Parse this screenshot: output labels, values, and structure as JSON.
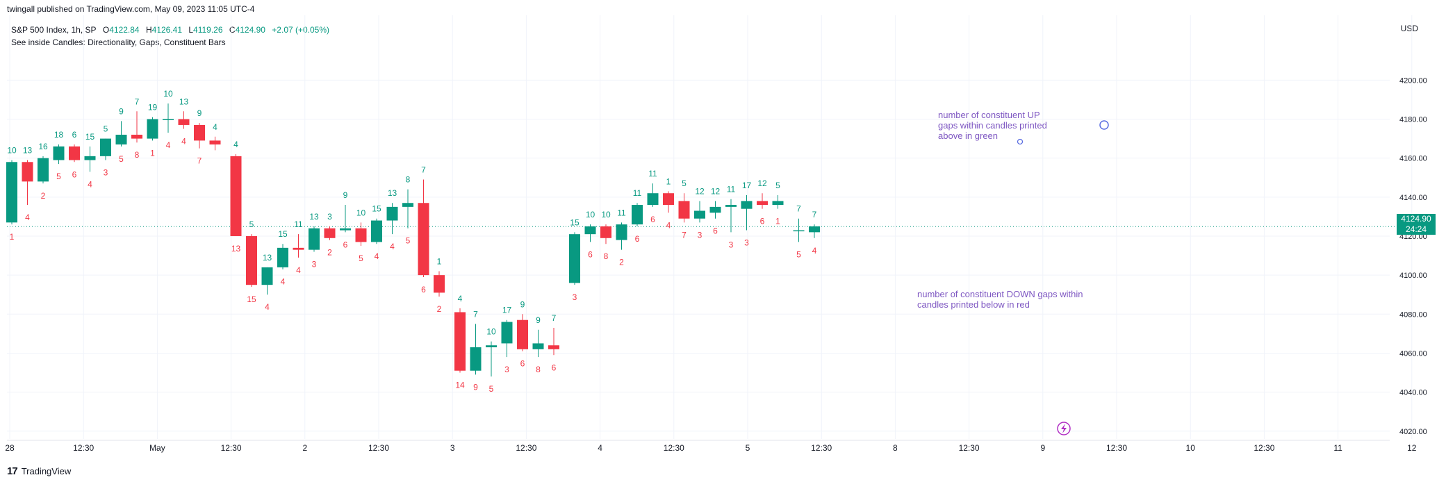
{
  "publish_line": "twingall published on TradingView.com, May 09, 2023 11:05 UTC-4",
  "header": {
    "symbol": "S&P 500 Index, 1h, SP",
    "open_label": "O",
    "open": "4122.84",
    "high_label": "H",
    "high": "4126.41",
    "low_label": "L",
    "low": "4119.26",
    "close_label": "C",
    "close": "4124.90",
    "change": "+2.07 (+0.05%)",
    "indicator": "See inside Candles: Directionality, Gaps, Constituent Bars"
  },
  "currency": "USD",
  "price_badge": {
    "price": "4124.90",
    "countdown": "24:24"
  },
  "annotations": {
    "up_note": "number of constituent UP gaps within candles printed above in green",
    "down_note": "number of constituent DOWN gaps within candles printed below in red"
  },
  "footer": {
    "brand": "TradingView",
    "logo": "17"
  },
  "colors": {
    "up": "#089981",
    "down": "#f23645",
    "note": "#7e57c2",
    "grid": "#f0f3fa",
    "axis_text": "#131722"
  },
  "chart_data": {
    "type": "candlestick",
    "title": "S&P 500 Index, 1h, SP",
    "ylabel": "USD",
    "ylim": [
      4016,
      4219
    ],
    "y_ticks": [
      "4020.00",
      "4040.00",
      "4060.00",
      "4080.00",
      "4100.00",
      "4120.00",
      "4140.00",
      "4160.00",
      "4180.00",
      "4200.00"
    ],
    "x_ticks": [
      "28",
      "12:30",
      "May",
      "12:30",
      "2",
      "12:30",
      "3",
      "12:30",
      "4",
      "12:30",
      "5",
      "12:30",
      "8",
      "12:30",
      "9",
      "12:30",
      "10",
      "12:30",
      "11",
      "12"
    ],
    "last_price": 4124.9,
    "candles": [
      {
        "o": 4127,
        "h": 4159,
        "l": 4126,
        "c": 4158,
        "up": "10",
        "dn": "1"
      },
      {
        "o": 4158,
        "h": 4159,
        "l": 4136,
        "c": 4148,
        "up": "13",
        "dn": "4"
      },
      {
        "o": 4148,
        "h": 4161,
        "l": 4147,
        "c": 4160,
        "up": "16",
        "dn": "2"
      },
      {
        "o": 4159,
        "h": 4167,
        "l": 4157,
        "c": 4166,
        "up": "18",
        "dn": "5"
      },
      {
        "o": 4166,
        "h": 4167,
        "l": 4158,
        "c": 4159,
        "up": "6",
        "dn": "6"
      },
      {
        "o": 4159,
        "h": 4166,
        "l": 4153,
        "c": 4161,
        "up": "15",
        "dn": "4"
      },
      {
        "o": 4161,
        "h": 4170,
        "l": 4159,
        "c": 4170,
        "up": "5",
        "dn": "3"
      },
      {
        "o": 4167,
        "h": 4179,
        "l": 4166,
        "c": 4172,
        "up": "9",
        "dn": "5"
      },
      {
        "o": 4172,
        "h": 4184,
        "l": 4168,
        "c": 4170,
        "up": "7",
        "dn": "8"
      },
      {
        "o": 4170,
        "h": 4181,
        "l": 4169,
        "c": 4180,
        "up": "19",
        "dn": "1"
      },
      {
        "o": 4180,
        "h": 4188,
        "l": 4173,
        "c": 4180,
        "up": "10",
        "dn": "4"
      },
      {
        "o": 4180,
        "h": 4184,
        "l": 4175,
        "c": 4177,
        "up": "13",
        "dn": "4"
      },
      {
        "o": 4177,
        "h": 4178,
        "l": 4165,
        "c": 4169,
        "up": "9",
        "dn": "7"
      },
      {
        "o": 4169,
        "h": 4171,
        "l": 4164,
        "c": 4167,
        "up": "4",
        "dn": ""
      },
      {
        "o": 4161,
        "h": 4162,
        "l": 4120,
        "c": 4120,
        "up": "4",
        "dn": "13"
      },
      {
        "o": 4120,
        "h": 4121,
        "l": 4094,
        "c": 4095,
        "up": "5",
        "dn": "15"
      },
      {
        "o": 4095,
        "h": 4104,
        "l": 4090,
        "c": 4104,
        "up": "13",
        "dn": "4"
      },
      {
        "o": 4104,
        "h": 4116,
        "l": 4103,
        "c": 4114,
        "up": "15",
        "dn": "4"
      },
      {
        "o": 4114,
        "h": 4121,
        "l": 4109,
        "c": 4113,
        "up": "11",
        "dn": "4"
      },
      {
        "o": 4113,
        "h": 4125,
        "l": 4112,
        "c": 4124,
        "up": "13",
        "dn": "3"
      },
      {
        "o": 4124,
        "h": 4125,
        "l": 4118,
        "c": 4119,
        "up": "3",
        "dn": "2"
      },
      {
        "o": 4123,
        "h": 4136,
        "l": 4122,
        "c": 4124,
        "up": "9",
        "dn": "6"
      },
      {
        "o": 4124,
        "h": 4127,
        "l": 4115,
        "c": 4117,
        "up": "10",
        "dn": "5"
      },
      {
        "o": 4117,
        "h": 4129,
        "l": 4116,
        "c": 4128,
        "up": "15",
        "dn": "4"
      },
      {
        "o": 4128,
        "h": 4137,
        "l": 4121,
        "c": 4135,
        "up": "13",
        "dn": "4"
      },
      {
        "o": 4135,
        "h": 4144,
        "l": 4124,
        "c": 4137,
        "up": "8",
        "dn": "5"
      },
      {
        "o": 4137,
        "h": 4149,
        "l": 4099,
        "c": 4100,
        "up": "7",
        "dn": "6"
      },
      {
        "o": 4100,
        "h": 4102,
        "l": 4089,
        "c": 4091,
        "up": "1",
        "dn": "2"
      },
      {
        "o": 4081,
        "h": 4083,
        "l": 4050,
        "c": 4051,
        "up": "4",
        "dn": "14"
      },
      {
        "o": 4051,
        "h": 4075,
        "l": 4049,
        "c": 4063,
        "up": "7",
        "dn": "9"
      },
      {
        "o": 4063,
        "h": 4066,
        "l": 4048,
        "c": 4064,
        "up": "10",
        "dn": "5"
      },
      {
        "o": 4065,
        "h": 4077,
        "l": 4058,
        "c": 4076,
        "up": "17",
        "dn": "3"
      },
      {
        "o": 4077,
        "h": 4080,
        "l": 4061,
        "c": 4062,
        "up": "9",
        "dn": "6"
      },
      {
        "o": 4062,
        "h": 4072,
        "l": 4058,
        "c": 4065,
        "up": "9",
        "dn": "8"
      },
      {
        "o": 4064,
        "h": 4073,
        "l": 4059,
        "c": 4062,
        "up": "7",
        "dn": "6"
      },
      {
        "o": 4096,
        "h": 4122,
        "l": 4095,
        "c": 4121,
        "up": "15",
        "dn": "3"
      },
      {
        "o": 4121,
        "h": 4126,
        "l": 4117,
        "c": 4125,
        "up": "10",
        "dn": "6"
      },
      {
        "o": 4125,
        "h": 4126,
        "l": 4116,
        "c": 4119,
        "up": "10",
        "dn": "8"
      },
      {
        "o": 4118,
        "h": 4127,
        "l": 4113,
        "c": 4126,
        "up": "11",
        "dn": "2"
      },
      {
        "o": 4126,
        "h": 4137,
        "l": 4125,
        "c": 4136,
        "up": "11",
        "dn": "6"
      },
      {
        "o": 4136,
        "h": 4147,
        "l": 4135,
        "c": 4142,
        "up": "11",
        "dn": "6"
      },
      {
        "o": 4142,
        "h": 4143,
        "l": 4132,
        "c": 4136,
        "up": "1",
        "dn": "4"
      },
      {
        "o": 4138,
        "h": 4142,
        "l": 4127,
        "c": 4129,
        "up": "5",
        "dn": "7"
      },
      {
        "o": 4129,
        "h": 4138,
        "l": 4127,
        "c": 4133,
        "up": "12",
        "dn": "3"
      },
      {
        "o": 4132,
        "h": 4138,
        "l": 4129,
        "c": 4135,
        "up": "12",
        "dn": "6"
      },
      {
        "o": 4135,
        "h": 4139,
        "l": 4122,
        "c": 4136,
        "up": "11",
        "dn": "3"
      },
      {
        "o": 4134,
        "h": 4141,
        "l": 4123,
        "c": 4138,
        "up": "17",
        "dn": "3"
      },
      {
        "o": 4138,
        "h": 4142,
        "l": 4134,
        "c": 4136,
        "up": "12",
        "dn": "6"
      },
      {
        "o": 4136,
        "h": 4141,
        "l": 4134,
        "c": 4138,
        "up": "5",
        "dn": "1"
      },
      {
        "o": 4123,
        "h": 4129,
        "l": 4117,
        "c": 4123,
        "up": "7",
        "dn": "5"
      },
      {
        "o": 4122,
        "h": 4126,
        "l": 4119,
        "c": 4125,
        "up": "7",
        "dn": "4"
      }
    ]
  }
}
